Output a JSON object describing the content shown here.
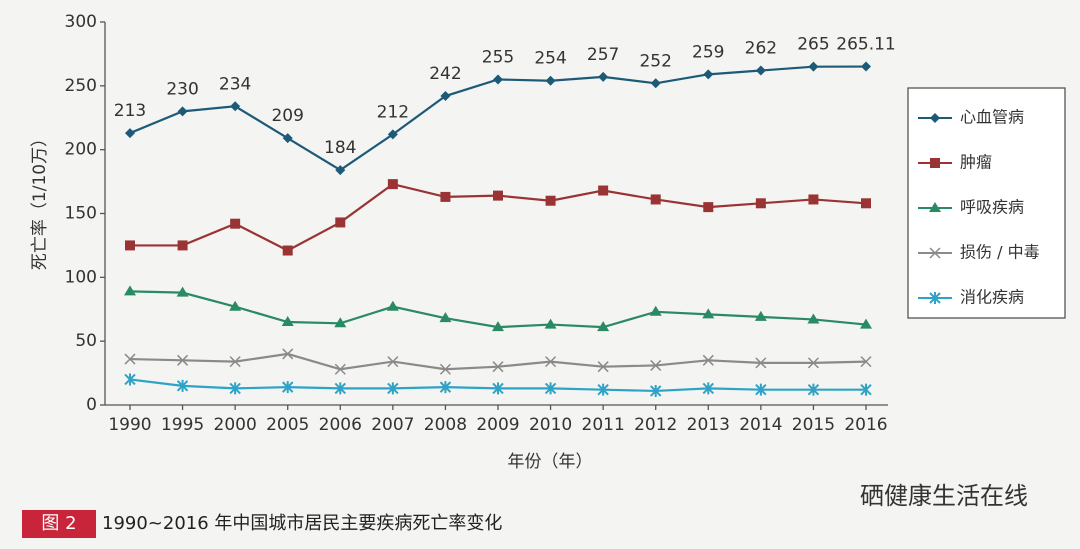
{
  "chart_data": {
    "type": "line",
    "y_label": "死亡率（1/10万）",
    "x_label": "年份（年）",
    "figure_label": "图 2",
    "caption": "1990~2016 年中国城市居民主要疾病死亡率变化",
    "watermark": "硒健康生活在线",
    "categories": [
      "1990",
      "1995",
      "2000",
      "2005",
      "2006",
      "2007",
      "2008",
      "2009",
      "2010",
      "2011",
      "2012",
      "2013",
      "2014",
      "2015",
      "2016"
    ],
    "ylim": [
      0,
      300
    ],
    "yticks": [
      0,
      50,
      100,
      150,
      200,
      250,
      300
    ],
    "grid": false,
    "legend": "right",
    "series": [
      {
        "name": "心血管病",
        "color": "#1d5a78",
        "marker": "diamond",
        "show_labels": true,
        "values": [
          213,
          230,
          234,
          209,
          184,
          212,
          242,
          255,
          254,
          257,
          252,
          259,
          262,
          265,
          265.11
        ]
      },
      {
        "name": "肿瘤",
        "color": "#9a3434",
        "marker": "square",
        "show_labels": false,
        "values": [
          125,
          125,
          142,
          121,
          143,
          173,
          163,
          164,
          160,
          168,
          161,
          155,
          158,
          161,
          158
        ]
      },
      {
        "name": "呼吸疾病",
        "color": "#2a8a64",
        "marker": "triangle",
        "show_labels": false,
        "values": [
          89,
          88,
          77,
          65,
          64,
          77,
          68,
          61,
          63,
          61,
          73,
          71,
          69,
          67,
          63
        ]
      },
      {
        "name": "损伤 / 中毒",
        "color": "#8a8a8a",
        "marker": "cross",
        "show_labels": false,
        "values": [
          36,
          35,
          34,
          40,
          28,
          34,
          28,
          30,
          34,
          30,
          31,
          35,
          33,
          33,
          34
        ]
      },
      {
        "name": "消化疾病",
        "color": "#2ea3c6",
        "marker": "star",
        "show_labels": false,
        "values": [
          20,
          15,
          13,
          14,
          13,
          13,
          14,
          13,
          13,
          12,
          11,
          13,
          12,
          12,
          12
        ]
      }
    ]
  }
}
